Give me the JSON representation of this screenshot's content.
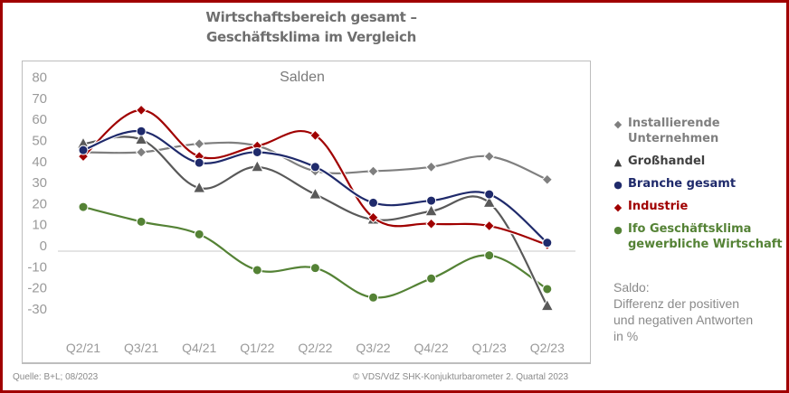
{
  "chart_data": {
    "type": "line",
    "title": "Wirtschaftsbereich gesamt – Geschäftsklima im Vergleich",
    "subtitle": "Salden",
    "xlabel": "",
    "ylabel": "",
    "categories": [
      "Q2/21",
      "Q3/21",
      "Q4/21",
      "Q1/22",
      "Q2/22",
      "Q3/22",
      "Q4/22",
      "Q1/23",
      "Q2/23"
    ],
    "yticks": [
      80,
      70,
      60,
      50,
      40,
      30,
      20,
      10,
      0,
      -10,
      -20,
      -30
    ],
    "ylim": [
      -30,
      80
    ],
    "grid": false,
    "smooth": true,
    "legend_position": "right",
    "series": [
      {
        "name": "Installierende Unternehmen",
        "color": "#7f7f7f",
        "marker": "diamond",
        "values": [
          47,
          47,
          51,
          50,
          38,
          38,
          40,
          45,
          34
        ]
      },
      {
        "name": "Großhandel",
        "color": "#595959",
        "marker": "triangle",
        "values": [
          51,
          53,
          30,
          40,
          27,
          15,
          19,
          23,
          -26
        ]
      },
      {
        "name": "Branche gesamt",
        "color": "#1f2a6b",
        "marker": "circle",
        "values": [
          48,
          57,
          42,
          47,
          40,
          23,
          24,
          27,
          4
        ]
      },
      {
        "name": "Industrie",
        "color": "#a00000",
        "marker": "diamond",
        "values": [
          45,
          67,
          45,
          50,
          55,
          16,
          13,
          12,
          3
        ]
      },
      {
        "name": "Ifo Geschäftsklima gewerbliche Wirtschaft",
        "color": "#548235",
        "marker": "circle",
        "values": [
          21,
          14,
          8,
          -9,
          -8,
          -22,
          -13,
          -2,
          -18
        ]
      }
    ]
  },
  "title_line1": "Wirtschaftsbereich gesamt –",
  "title_line2": "Geschäftsklima im Vergleich",
  "legend": [
    {
      "line1": "Installierende",
      "line2": "Unternehmen",
      "glyph": "◆",
      "color": "#7f7f7f"
    },
    {
      "line1": "Großhandel",
      "line2": "",
      "glyph": "▲",
      "color": "#404040"
    },
    {
      "line1": "Branche gesamt",
      "line2": "",
      "glyph": "●",
      "color": "#1f2a6b"
    },
    {
      "line1": "Industrie",
      "line2": "",
      "glyph": "◆",
      "color": "#a00000"
    },
    {
      "line1": "Ifo Geschäftsklima",
      "line2": "gewerbliche Wirtschaft",
      "glyph": "●",
      "color": "#548235"
    }
  ],
  "note": {
    "line1": "Saldo:",
    "line2": "Differenz der positiven",
    "line3": "und negativen Antworten",
    "line4": "in %"
  },
  "footer": {
    "source": "Quelle: B+L; 08/2023",
    "copyright": "© VDS/VdZ SHK-Konjukturbarometer 2. Quartal 2023"
  }
}
